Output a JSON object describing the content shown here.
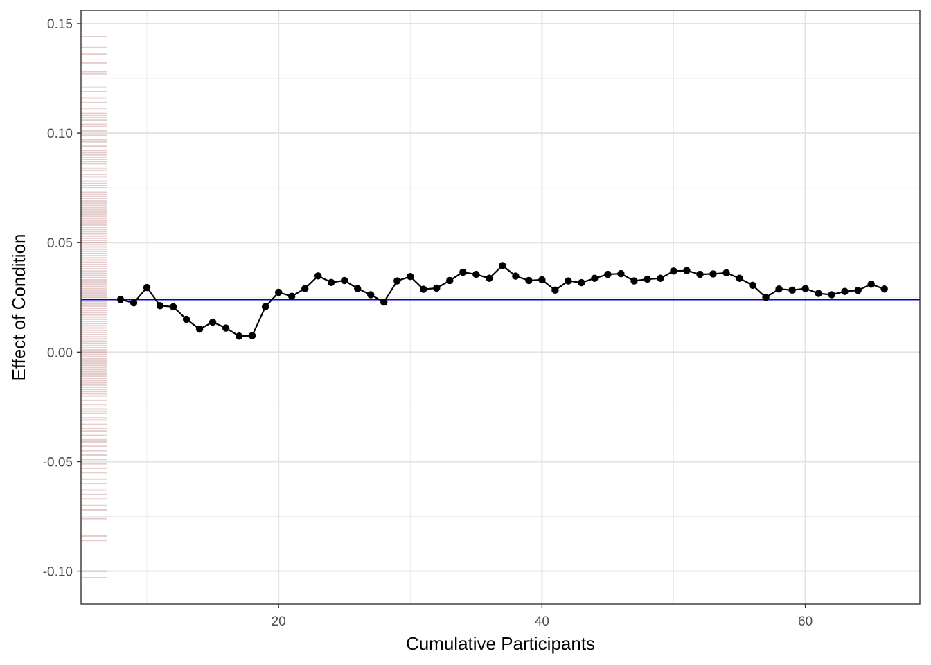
{
  "chart_data": {
    "type": "line",
    "title": "",
    "xlabel": "Cumulative Participants",
    "ylabel": "Effect of Condition",
    "xlim": [
      5.0,
      68.7
    ],
    "ylim": [
      -0.115,
      0.156
    ],
    "x_ticks": [
      20,
      40,
      60
    ],
    "x_tick_labels": [
      "20",
      "40",
      "60"
    ],
    "y_ticks": [
      -0.1,
      -0.05,
      0.0,
      0.05,
      0.1,
      0.15
    ],
    "y_tick_labels": [
      "-0.10",
      "-0.05",
      "0.00",
      "0.05",
      "0.10",
      "0.15"
    ],
    "grid": true,
    "reference_line": {
      "y": 0.024,
      "color": "#0000cc"
    },
    "series": [
      {
        "x": [
          8,
          9,
          10,
          11,
          12,
          13,
          14,
          15,
          16,
          17,
          18,
          19,
          20,
          21,
          22,
          23,
          24,
          25,
          26,
          27,
          28,
          29,
          30,
          31,
          32,
          33,
          34,
          35,
          36,
          37,
          38,
          39,
          40,
          41,
          42,
          43,
          44,
          45,
          46,
          47,
          48,
          49,
          50,
          51,
          52,
          53,
          54,
          55,
          56,
          57,
          58,
          59,
          60,
          61,
          62,
          63,
          64,
          65,
          66
        ],
        "values": [
          0.024,
          0.0225,
          0.0295,
          0.0212,
          0.0207,
          0.015,
          0.0105,
          0.0137,
          0.011,
          0.0073,
          0.0075,
          0.0207,
          0.0273,
          0.0255,
          0.029,
          0.0348,
          0.0318,
          0.0327,
          0.029,
          0.0262,
          0.0228,
          0.0325,
          0.0345,
          0.0287,
          0.0292,
          0.0327,
          0.0365,
          0.0355,
          0.0337,
          0.0395,
          0.0347,
          0.0327,
          0.033,
          0.0283,
          0.0325,
          0.0317,
          0.0337,
          0.0355,
          0.0358,
          0.0325,
          0.0333,
          0.0337,
          0.037,
          0.0372,
          0.0355,
          0.0357,
          0.0362,
          0.0337,
          0.0305,
          0.025,
          0.0288,
          0.0283,
          0.029,
          0.0268,
          0.0262,
          0.0277,
          0.0282,
          0.031,
          0.0288
        ],
        "color": "#000000"
      }
    ],
    "rug": {
      "color": "#8b1a1a",
      "values": [
        0.144,
        0.139,
        0.136,
        0.132,
        0.128,
        0.127,
        0.121,
        0.119,
        0.116,
        0.114,
        0.111,
        0.109,
        0.108,
        0.107,
        0.106,
        0.104,
        0.103,
        0.101,
        0.099,
        0.097,
        0.096,
        0.094,
        0.092,
        0.091,
        0.09,
        0.089,
        0.088,
        0.087,
        0.086,
        0.084,
        0.083,
        0.081,
        0.08,
        0.078,
        0.077,
        0.076,
        0.075,
        0.073,
        0.072,
        0.071,
        0.07,
        0.069,
        0.068,
        0.067,
        0.066,
        0.065,
        0.064,
        0.063,
        0.062,
        0.061,
        0.06,
        0.059,
        0.058,
        0.057,
        0.056,
        0.055,
        0.054,
        0.053,
        0.052,
        0.051,
        0.05,
        0.049,
        0.048,
        0.047,
        0.046,
        0.045,
        0.044,
        0.043,
        0.042,
        0.041,
        0.04,
        0.039,
        0.038,
        0.037,
        0.036,
        0.035,
        0.034,
        0.033,
        0.032,
        0.031,
        0.03,
        0.029,
        0.028,
        0.027,
        0.026,
        0.025,
        0.024,
        0.023,
        0.022,
        0.021,
        0.02,
        0.019,
        0.018,
        0.017,
        0.016,
        0.015,
        0.014,
        0.013,
        0.012,
        0.011,
        0.01,
        0.009,
        0.008,
        0.007,
        0.006,
        0.005,
        0.004,
        0.003,
        0.002,
        0.001,
        0.0,
        -0.001,
        -0.002,
        -0.003,
        -0.004,
        -0.005,
        -0.006,
        -0.007,
        -0.008,
        -0.009,
        -0.01,
        -0.011,
        -0.012,
        -0.013,
        -0.014,
        -0.015,
        -0.016,
        -0.017,
        -0.018,
        -0.019,
        -0.02,
        -0.022,
        -0.024,
        -0.026,
        -0.027,
        -0.028,
        -0.03,
        -0.031,
        -0.033,
        -0.035,
        -0.036,
        -0.038,
        -0.04,
        -0.041,
        -0.043,
        -0.045,
        -0.047,
        -0.049,
        -0.051,
        -0.053,
        -0.055,
        -0.058,
        -0.06,
        -0.063,
        -0.065,
        -0.067,
        -0.07,
        -0.072,
        -0.076,
        -0.084,
        -0.086,
        -0.1,
        -0.103
      ]
    }
  }
}
